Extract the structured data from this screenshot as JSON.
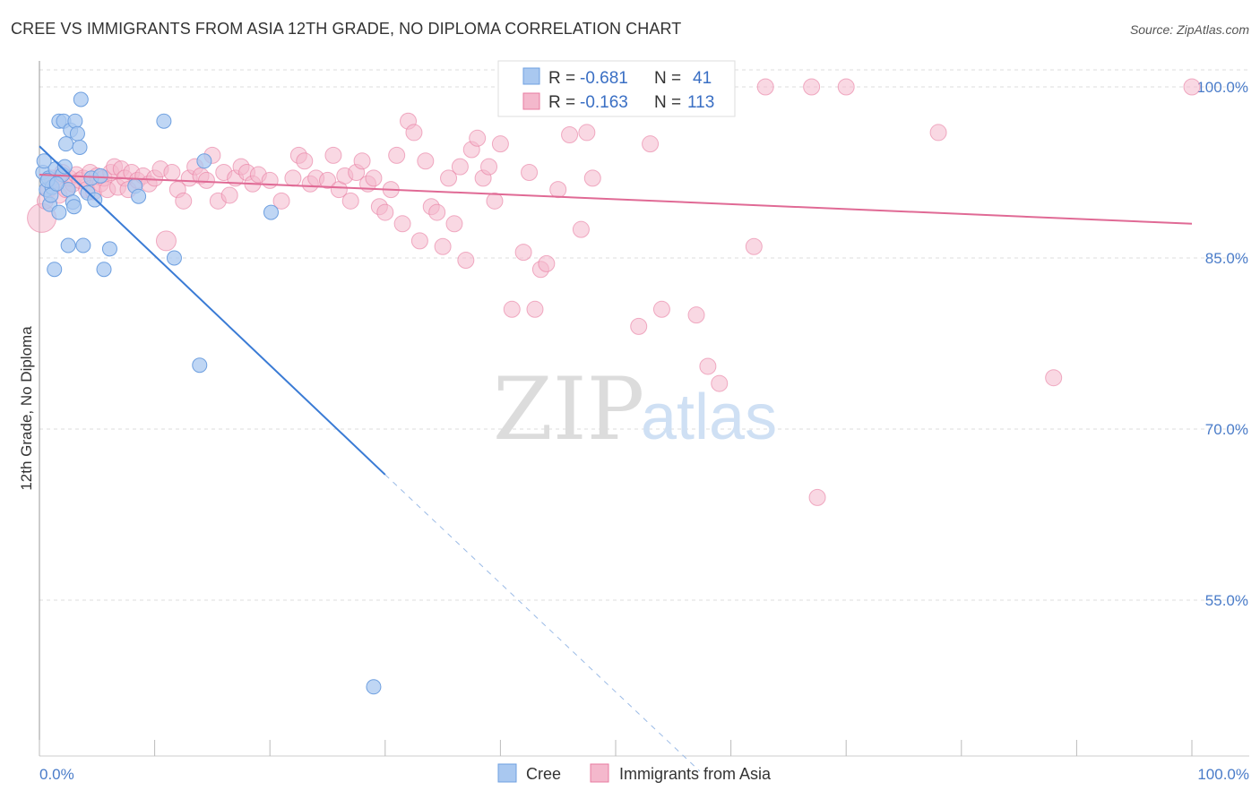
{
  "title": "CREE VS IMMIGRANTS FROM ASIA 12TH GRADE, NO DIPLOMA CORRELATION CHART",
  "source": "Source: ZipAtlas.com",
  "watermark": {
    "zip": "ZIP",
    "atlas": "atlas"
  },
  "colors": {
    "cree": "#6fa0e0",
    "cree_fill": "#a9c8f0",
    "asia": "#e87ba0",
    "asia_fill": "#f4b8cc",
    "axis_tick_label": "#4a7cc9",
    "grid": "#dddddd"
  },
  "legend_box": {
    "rows": [
      {
        "r_label": "R =",
        "r_value": "-0.681",
        "n_label": "N =",
        "n_value": "41"
      },
      {
        "r_label": "R =",
        "r_value": "-0.163",
        "n_label": "N =",
        "n_value": "113"
      }
    ]
  },
  "chart_data": {
    "type": "scatter",
    "title": "CREE VS IMMIGRANTS FROM ASIA 12TH GRADE, NO DIPLOMA CORRELATION CHART",
    "xlabel": "",
    "ylabel": "12th Grade, No Diploma",
    "xlim": [
      0,
      100
    ],
    "ylim": [
      40,
      102
    ],
    "x_tick_labels": [
      "0.0%",
      "100.0%"
    ],
    "y_ticks": [
      55,
      70,
      85,
      100
    ],
    "y_tick_labels": [
      "55.0%",
      "70.0%",
      "85.0%",
      "100.0%"
    ],
    "grid": "horizontal dashed",
    "legend_placement": "bottom-center",
    "series": [
      {
        "name": "Cree",
        "r": -0.681,
        "n": 41,
        "trend": {
          "x": [
            0,
            30
          ],
          "y": [
            94.8,
            66.0
          ],
          "dashed_to": [
            57.3,
            40.0
          ]
        },
        "points": [
          [
            0.3,
            92.5
          ],
          [
            0.6,
            91.0
          ],
          [
            0.8,
            92.0
          ],
          [
            1.1,
            91.2
          ],
          [
            1.4,
            92.8
          ],
          [
            1.7,
            97.0
          ],
          [
            2.0,
            92.3
          ],
          [
            2.1,
            97.0
          ],
          [
            2.3,
            95.0
          ],
          [
            2.5,
            91.0
          ],
          [
            2.7,
            96.2
          ],
          [
            2.9,
            89.9
          ],
          [
            3.1,
            97.0
          ],
          [
            3.3,
            95.9
          ],
          [
            3.5,
            94.7
          ],
          [
            3.6,
            98.9
          ],
          [
            3.8,
            86.1
          ],
          [
            4.2,
            90.7
          ],
          [
            4.5,
            92.0
          ],
          [
            4.8,
            90.1
          ],
          [
            5.3,
            92.2
          ],
          [
            5.6,
            84.0
          ],
          [
            6.1,
            85.8
          ],
          [
            1.3,
            84.0
          ],
          [
            2.5,
            86.1
          ],
          [
            3.0,
            89.5
          ],
          [
            0.9,
            89.7
          ],
          [
            1.7,
            89.0
          ],
          [
            8.3,
            91.3
          ],
          [
            8.6,
            90.4
          ],
          [
            10.8,
            97.0
          ],
          [
            11.7,
            85.0
          ],
          [
            14.3,
            93.5
          ],
          [
            13.9,
            75.6
          ],
          [
            20.1,
            89.0
          ],
          [
            29.0,
            47.4
          ],
          [
            0.4,
            93.5
          ],
          [
            1.0,
            90.5
          ],
          [
            2.2,
            93.0
          ],
          [
            0.7,
            91.8
          ],
          [
            1.5,
            91.5
          ]
        ]
      },
      {
        "name": "Immigrants from Asia",
        "r": -0.163,
        "n": 113,
        "trend": {
          "x": [
            0,
            100
          ],
          "y": [
            92.3,
            88.0
          ]
        },
        "points": [
          [
            0.2,
            88.5
          ],
          [
            0.5,
            90.0
          ],
          [
            0.8,
            91.0
          ],
          [
            1.1,
            92.0
          ],
          [
            1.4,
            91.5
          ],
          [
            1.7,
            90.5
          ],
          [
            2.0,
            92.5
          ],
          [
            2.3,
            91.0
          ],
          [
            2.6,
            92.0
          ],
          [
            2.9,
            91.5
          ],
          [
            3.2,
            92.3
          ],
          [
            3.5,
            91.8
          ],
          [
            3.8,
            92.0
          ],
          [
            4.1,
            91.0
          ],
          [
            4.4,
            92.5
          ],
          [
            4.7,
            90.8
          ],
          [
            5.0,
            92.2
          ],
          [
            5.3,
            91.5
          ],
          [
            5.6,
            92.0
          ],
          [
            5.9,
            91.0
          ],
          [
            6.2,
            92.5
          ],
          [
            6.5,
            93.0
          ],
          [
            6.8,
            91.2
          ],
          [
            7.1,
            92.8
          ],
          [
            7.4,
            92.0
          ],
          [
            7.7,
            91.0
          ],
          [
            8.0,
            92.5
          ],
          [
            8.5,
            91.8
          ],
          [
            9.0,
            92.2
          ],
          [
            9.5,
            91.5
          ],
          [
            10.0,
            92.0
          ],
          [
            10.5,
            92.8
          ],
          [
            11.0,
            86.5
          ],
          [
            11.5,
            92.5
          ],
          [
            12.0,
            91.0
          ],
          [
            12.5,
            90.0
          ],
          [
            13.0,
            92.0
          ],
          [
            13.5,
            93.0
          ],
          [
            14.0,
            92.2
          ],
          [
            14.5,
            91.8
          ],
          [
            15.0,
            94.0
          ],
          [
            15.5,
            90.0
          ],
          [
            16.0,
            92.5
          ],
          [
            16.5,
            90.5
          ],
          [
            17.0,
            92.0
          ],
          [
            17.5,
            93.0
          ],
          [
            18.0,
            92.5
          ],
          [
            18.5,
            91.5
          ],
          [
            19.0,
            92.3
          ],
          [
            20.0,
            91.8
          ],
          [
            21.0,
            90.0
          ],
          [
            22.0,
            92.0
          ],
          [
            22.5,
            94.0
          ],
          [
            23.0,
            93.5
          ],
          [
            23.5,
            91.5
          ],
          [
            24.0,
            92.0
          ],
          [
            25.0,
            91.8
          ],
          [
            25.5,
            94.0
          ],
          [
            26.0,
            91.0
          ],
          [
            26.5,
            92.2
          ],
          [
            27.0,
            90.0
          ],
          [
            27.5,
            92.5
          ],
          [
            28.0,
            93.5
          ],
          [
            28.5,
            91.5
          ],
          [
            29.0,
            92.0
          ],
          [
            29.5,
            89.5
          ],
          [
            30.0,
            89.0
          ],
          [
            30.5,
            91.0
          ],
          [
            31.0,
            94.0
          ],
          [
            31.5,
            88.0
          ],
          [
            32.0,
            97.0
          ],
          [
            32.5,
            96.0
          ],
          [
            33.0,
            86.5
          ],
          [
            33.5,
            93.5
          ],
          [
            34.0,
            89.5
          ],
          [
            34.5,
            89.0
          ],
          [
            35.0,
            86.0
          ],
          [
            35.5,
            92.0
          ],
          [
            36.0,
            88.0
          ],
          [
            36.5,
            93.0
          ],
          [
            37.0,
            84.8
          ],
          [
            37.5,
            94.5
          ],
          [
            38.0,
            95.5
          ],
          [
            38.5,
            92.0
          ],
          [
            39.0,
            93.0
          ],
          [
            39.5,
            90.0
          ],
          [
            40.0,
            95.0
          ],
          [
            41.0,
            80.5
          ],
          [
            42.0,
            85.5
          ],
          [
            42.5,
            92.5
          ],
          [
            43.0,
            80.5
          ],
          [
            43.5,
            84.0
          ],
          [
            44.0,
            84.5
          ],
          [
            45.0,
            91.0
          ],
          [
            46.0,
            95.8
          ],
          [
            47.0,
            87.5
          ],
          [
            47.5,
            96.0
          ],
          [
            48.0,
            92.0
          ],
          [
            52.0,
            79.0
          ],
          [
            53.0,
            95.0
          ],
          [
            54.0,
            80.5
          ],
          [
            55.0,
            100.0
          ],
          [
            57.0,
            80.0
          ],
          [
            58.0,
            75.5
          ],
          [
            59.0,
            74.0
          ],
          [
            62.0,
            86.0
          ],
          [
            63.0,
            100.0
          ],
          [
            67.0,
            100.0
          ],
          [
            67.5,
            64.0
          ],
          [
            70.0,
            100.0
          ],
          [
            78.0,
            96.0
          ],
          [
            88.0,
            74.5
          ],
          [
            100.0,
            100.0
          ]
        ]
      }
    ]
  },
  "bottom_legend": [
    {
      "label": "Cree"
    },
    {
      "label": "Immigrants from Asia"
    }
  ]
}
